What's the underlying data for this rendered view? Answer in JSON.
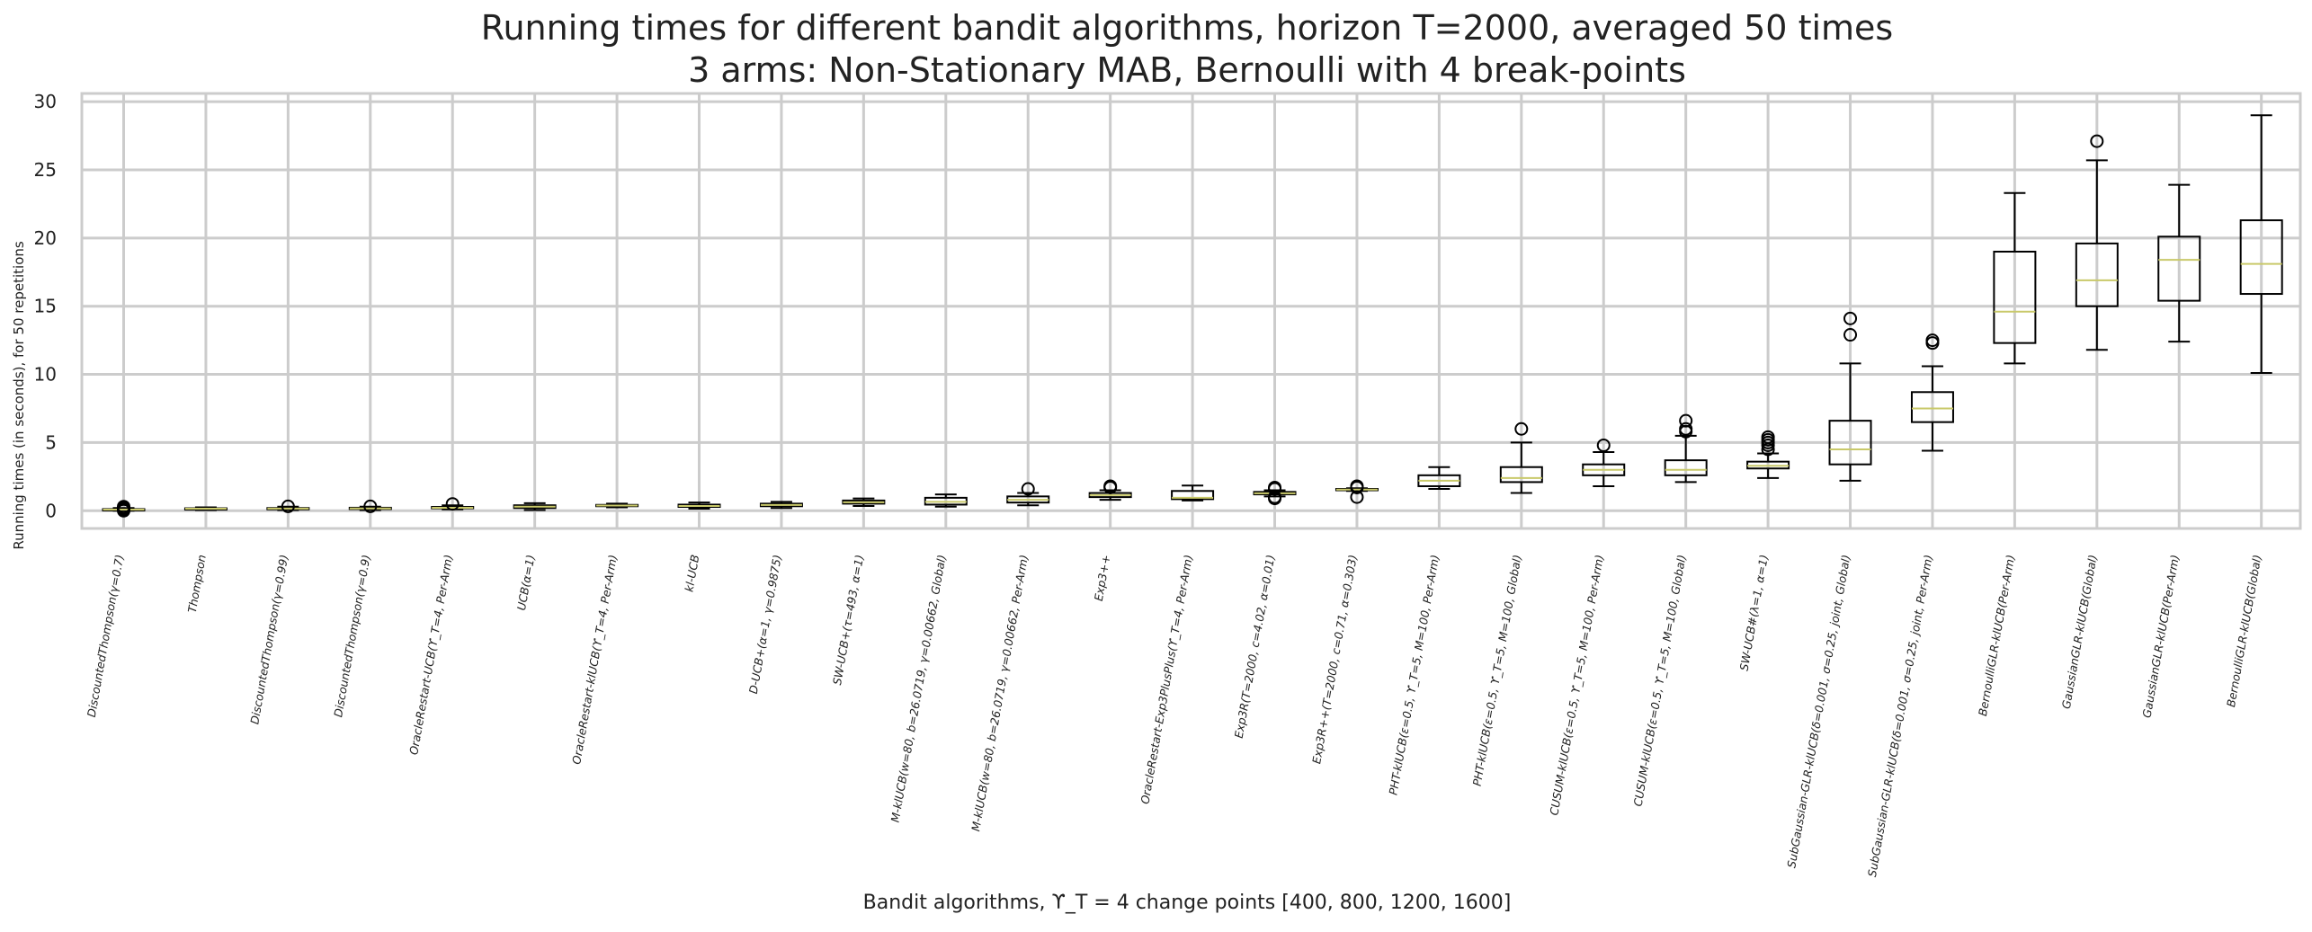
{
  "chart_data": {
    "type": "box",
    "title": [
      "Running times for different bandit algorithms, horizon T=2000, averaged 50 times",
      "3 arms: Non-Stationary MAB, Bernoulli with 4 break-points"
    ],
    "xlabel": "Bandit algorithms, ϒ_T = 4 change points [400, 800, 1200, 1600]",
    "ylabel": "Running times (in seconds), for 50 repetitions",
    "ylim": [
      -1.3,
      30.6
    ],
    "yticks": [
      0,
      5,
      10,
      15,
      20,
      25,
      30
    ],
    "grid": true,
    "legend": "none",
    "colors": {
      "box": "#000000",
      "median": "#c9c96a",
      "grid": "#cccccc",
      "frame": "#cccccc"
    },
    "categories": [
      "DiscountedThompson(γ=0.7)",
      "Thompson",
      "DiscountedThompson(γ=0.99)",
      "DiscountedThompson(γ=0.9)",
      "OracleRestart-UCB(ϒ_T=4, Per-Arm)",
      "UCB(α=1)",
      "OracleRestart-klUCB(ϒ_T=4, Per-Arm)",
      "kl-UCB",
      "D-UCB+(α=1, γ=0.9875)",
      "SW-UCB+(τ=493, α=1)",
      "M-klUCB(w=80, b=26.0719, γ=0.00662, Global)",
      "M-klUCB(w=80, b=26.0719, γ=0.00662, Per-Arm)",
      "Exp3++",
      "OracleRestart-Exp3PlusPlus(ϒ_T=4, Per-Arm)",
      "Exp3R(T=2000, c=4.02, α=0.01)",
      "Exp3R++(T=2000, c=0.71, α=0.303)",
      "PHT-klUCB(ε=0.5, ϒ_T=5, M=100, Per-Arm)",
      "PHT-klUCB(ε=0.5, ϒ_T=5, M=100, Global)",
      "CUSUM-klUCB(ε=0.5, ϒ_T=5, M=100, Per-Arm)",
      "CUSUM-klUCB(ε=0.5, ϒ_T=5, M=100, Global)",
      "SW-UCB#(λ=1, α=1)",
      "SubGaussian-GLR-klUCB(δ=0.001, σ=0.25, joint, Global)",
      "SubGaussian-GLR-klUCB(δ=0.001, σ=0.25, joint, Per-Arm)",
      "BernoulliGLR-klUCB(Per-Arm)",
      "GaussianGLR-klUCB(Global)",
      "GaussianGLR-klUCB(Per-Arm)",
      "BernoulliGLR-klUCB(Global)"
    ],
    "boxes": [
      {
        "whislo": 0.0,
        "q1": 0.05,
        "med": 0.08,
        "q3": 0.12,
        "whishi": 0.2,
        "fliers": [
          0.0,
          0.1,
          0.2,
          0.3
        ]
      },
      {
        "whislo": 0.05,
        "q1": 0.12,
        "med": 0.15,
        "q3": 0.18,
        "whishi": 0.25,
        "fliers": []
      },
      {
        "whislo": 0.05,
        "q1": 0.12,
        "med": 0.16,
        "q3": 0.2,
        "whishi": 0.3,
        "fliers": [
          0.32
        ]
      },
      {
        "whislo": 0.05,
        "q1": 0.12,
        "med": 0.17,
        "q3": 0.22,
        "whishi": 0.3,
        "fliers": [
          0.32
        ]
      },
      {
        "whislo": 0.1,
        "q1": 0.18,
        "med": 0.22,
        "q3": 0.28,
        "whishi": 0.4,
        "fliers": [
          0.5
        ]
      },
      {
        "whislo": 0.05,
        "q1": 0.2,
        "med": 0.3,
        "q3": 0.4,
        "whishi": 0.55,
        "fliers": []
      },
      {
        "whislo": 0.25,
        "q1": 0.33,
        "med": 0.38,
        "q3": 0.43,
        "whishi": 0.52,
        "fliers": []
      },
      {
        "whislo": 0.15,
        "q1": 0.28,
        "med": 0.35,
        "q3": 0.45,
        "whishi": 0.6,
        "fliers": []
      },
      {
        "whislo": 0.2,
        "q1": 0.33,
        "med": 0.42,
        "q3": 0.52,
        "whishi": 0.65,
        "fliers": []
      },
      {
        "whislo": 0.35,
        "q1": 0.52,
        "med": 0.62,
        "q3": 0.75,
        "whishi": 0.9,
        "fliers": []
      },
      {
        "whislo": 0.3,
        "q1": 0.45,
        "med": 0.65,
        "q3": 0.95,
        "whishi": 1.2,
        "fliers": []
      },
      {
        "whislo": 0.4,
        "q1": 0.6,
        "med": 0.8,
        "q3": 1.05,
        "whishi": 1.3,
        "fliers": [
          1.6
        ]
      },
      {
        "whislo": 0.8,
        "q1": 1.0,
        "med": 1.15,
        "q3": 1.3,
        "whishi": 1.5,
        "fliers": [
          1.7,
          1.8
        ]
      },
      {
        "whislo": 0.75,
        "q1": 0.85,
        "med": 0.95,
        "q3": 1.45,
        "whishi": 1.85,
        "fliers": []
      },
      {
        "whislo": 1.05,
        "q1": 1.2,
        "med": 1.28,
        "q3": 1.38,
        "whishi": 1.5,
        "fliers": [
          0.9,
          1.0,
          1.6,
          1.7
        ]
      },
      {
        "whislo": 1.45,
        "q1": 1.5,
        "med": 1.55,
        "q3": 1.6,
        "whishi": 1.65,
        "fliers": [
          1.0,
          1.7,
          1.8
        ]
      },
      {
        "whislo": 1.6,
        "q1": 1.8,
        "med": 2.2,
        "q3": 2.6,
        "whishi": 3.2,
        "fliers": []
      },
      {
        "whislo": 1.3,
        "q1": 2.1,
        "med": 2.4,
        "q3": 3.2,
        "whishi": 5.0,
        "fliers": [
          6.0
        ]
      },
      {
        "whislo": 1.8,
        "q1": 2.6,
        "med": 3.0,
        "q3": 3.4,
        "whishi": 4.3,
        "fliers": [
          4.8
        ]
      },
      {
        "whislo": 2.1,
        "q1": 2.6,
        "med": 3.0,
        "q3": 3.7,
        "whishi": 5.5,
        "fliers": [
          5.8,
          6.0,
          6.6
        ]
      },
      {
        "whislo": 2.4,
        "q1": 3.1,
        "med": 3.3,
        "q3": 3.6,
        "whishi": 4.2,
        "fliers": [
          4.5,
          4.8,
          5.0,
          5.2,
          5.4
        ]
      },
      {
        "whislo": 2.2,
        "q1": 3.4,
        "med": 4.5,
        "q3": 6.6,
        "whishi": 10.8,
        "fliers": [
          12.9,
          14.1
        ]
      },
      {
        "whislo": 4.4,
        "q1": 6.5,
        "med": 7.5,
        "q3": 8.7,
        "whishi": 10.6,
        "fliers": [
          12.3,
          12.5
        ]
      },
      {
        "whislo": 10.8,
        "q1": 12.3,
        "med": 14.6,
        "q3": 19.0,
        "whishi": 23.3,
        "fliers": []
      },
      {
        "whislo": 11.8,
        "q1": 15.0,
        "med": 16.9,
        "q3": 19.6,
        "whishi": 25.7,
        "fliers": [
          27.1
        ]
      },
      {
        "whislo": 12.4,
        "q1": 15.4,
        "med": 18.4,
        "q3": 20.1,
        "whishi": 23.9,
        "fliers": []
      },
      {
        "whislo": 10.1,
        "q1": 15.9,
        "med": 18.1,
        "q3": 21.3,
        "whishi": 29.0,
        "fliers": []
      }
    ]
  }
}
